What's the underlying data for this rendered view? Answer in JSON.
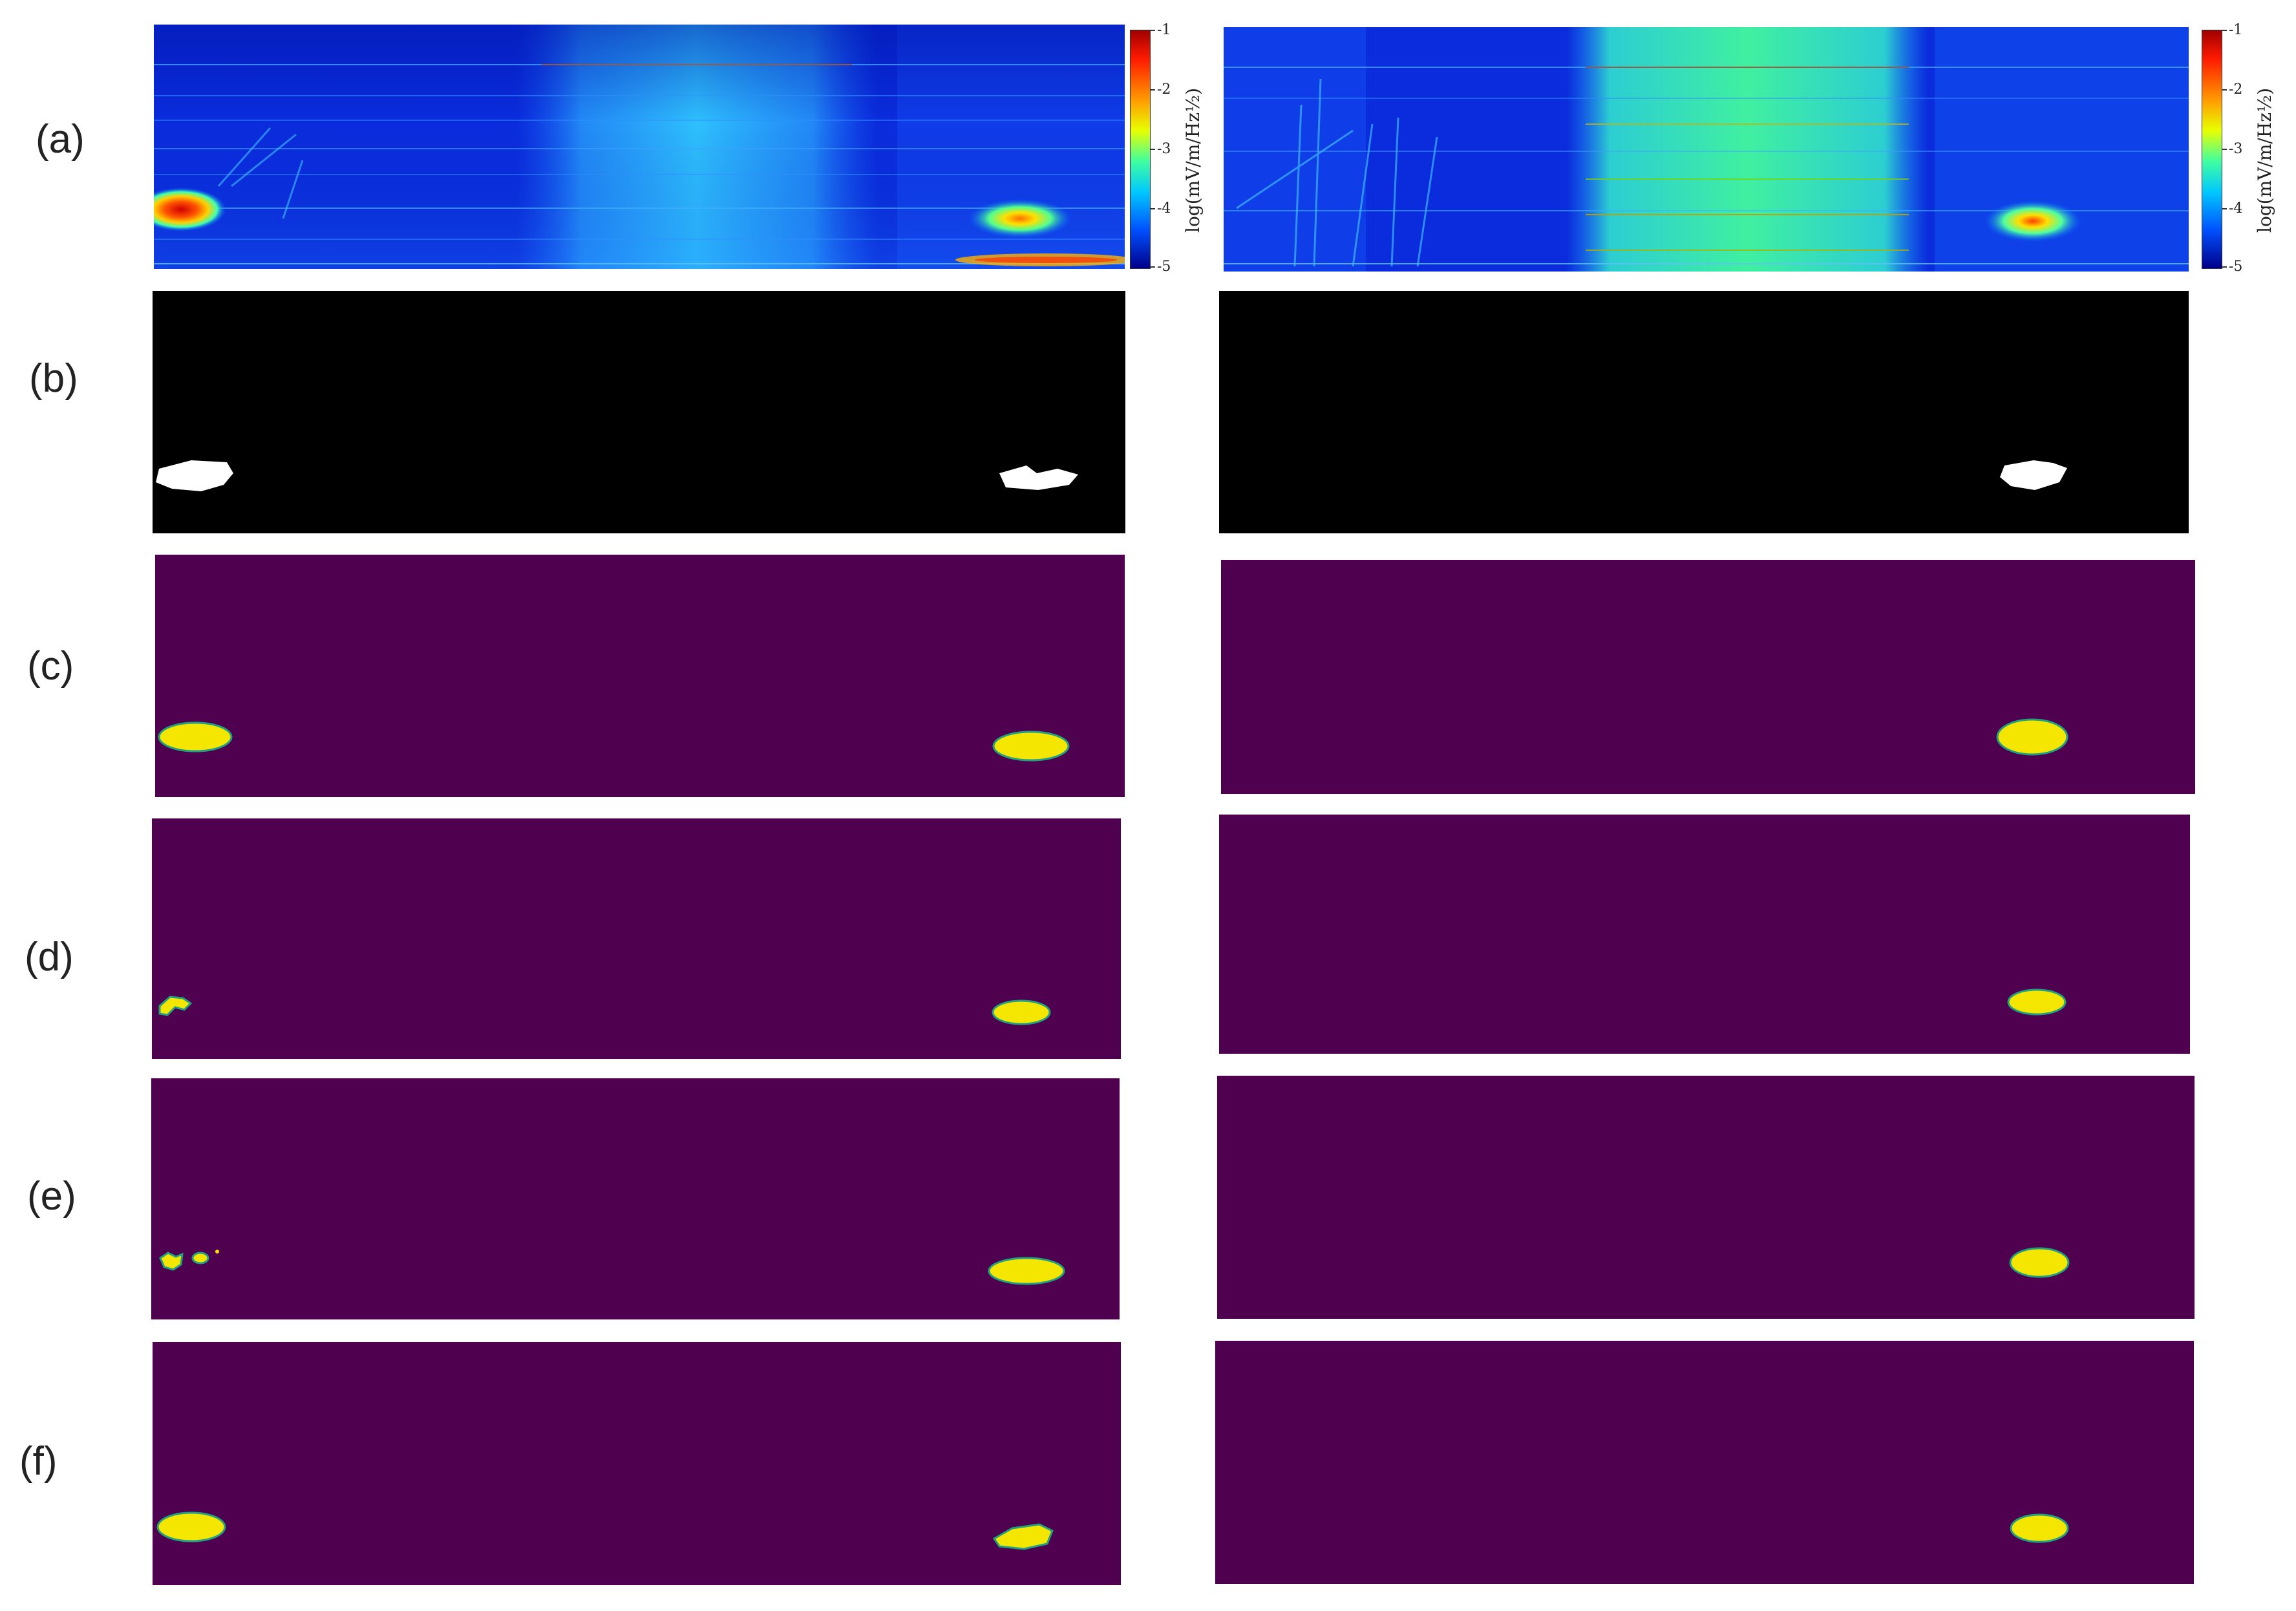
{
  "row_labels": [
    "(a)",
    "(b)",
    "(c)",
    "(d)",
    "(e)",
    "(f)"
  ],
  "colorbar": {
    "label": "log(mV/m/Hz½)",
    "ticks": [
      "-1",
      "-2",
      "-3",
      "-4",
      "-5"
    ],
    "colormap": "jet"
  },
  "colors": {
    "spectrogram_base": "#0a18c8",
    "mask_background_binary": "#000000",
    "mask_foreground_binary": "#ffffff",
    "mask_background_viridis": "#4f004f",
    "mask_foreground_viridis": "#f5e600"
  }
}
